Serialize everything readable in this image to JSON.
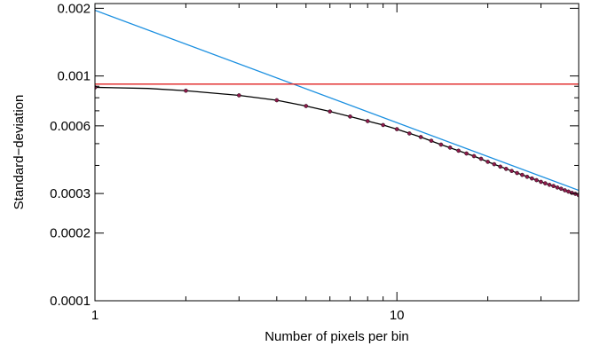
{
  "chart_data": {
    "type": "line",
    "title": "",
    "xlabel": "Number of pixels per bin",
    "ylabel": "Standard−deviation",
    "xscale": "log",
    "yscale": "log",
    "xlim": [
      1,
      40
    ],
    "ylim": [
      0.0001,
      0.0021
    ],
    "x_ticks": [
      {
        "value": 1,
        "label": "1"
      },
      {
        "value": 10,
        "label": "10"
      }
    ],
    "y_ticks": [
      {
        "value": 0.0001,
        "label": "0.0001"
      },
      {
        "value": 0.0002,
        "label": "0.0002"
      },
      {
        "value": 0.0003,
        "label": "0.0003"
      },
      {
        "value": 0.0006,
        "label": "0.0006"
      },
      {
        "value": 0.001,
        "label": "0.001"
      },
      {
        "value": 0.002,
        "label": "0.002"
      }
    ],
    "grid": false,
    "legend": "none",
    "series": [
      {
        "kind": "line",
        "color": "#1a8fe0",
        "x": [
          1,
          40
        ],
        "y": [
          0.00196,
          0.00031
        ]
      },
      {
        "kind": "line",
        "color": "#e02020",
        "x": [
          1,
          40
        ],
        "y": [
          0.00092,
          0.00092
        ]
      },
      {
        "kind": "line",
        "color": "#000000",
        "x": [
          1,
          1.5,
          2,
          3,
          4,
          5,
          6,
          7,
          8,
          9,
          10,
          12,
          14,
          16,
          18,
          20,
          24,
          28,
          32,
          36,
          40
        ],
        "y": [
          0.00089,
          0.00088,
          0.00086,
          0.00082,
          0.00078,
          0.000735,
          0.000695,
          0.00066,
          0.00063,
          0.000605,
          0.00058,
          0.000535,
          0.000495,
          0.000465,
          0.00044,
          0.000415,
          0.000378,
          0.00035,
          0.000328,
          0.00031,
          0.000295
        ]
      },
      {
        "kind": "scatter",
        "color": "#8b1a4a",
        "x": [
          1,
          2,
          3,
          4,
          5,
          6,
          7,
          8,
          9,
          10,
          11,
          12,
          13,
          14,
          15,
          16,
          17,
          18,
          19,
          20,
          21,
          22,
          23,
          24,
          25,
          26,
          27,
          28,
          29,
          30,
          31,
          32,
          33,
          34,
          35,
          36,
          37,
          38,
          39,
          40
        ],
        "y": [
          0.00089,
          0.00086,
          0.00082,
          0.00078,
          0.000735,
          0.000695,
          0.00066,
          0.00063,
          0.000605,
          0.00058,
          0.000555,
          0.000535,
          0.000515,
          0.000495,
          0.00048,
          0.000465,
          0.000452,
          0.00044,
          0.000428,
          0.000415,
          0.000405,
          0.000395,
          0.000386,
          0.000378,
          0.00037,
          0.000363,
          0.000356,
          0.00035,
          0.000344,
          0.000338,
          0.000333,
          0.000328,
          0.000324,
          0.000319,
          0.000315,
          0.00031,
          0.000306,
          0.000302,
          0.000299,
          0.000295
        ]
      }
    ]
  }
}
